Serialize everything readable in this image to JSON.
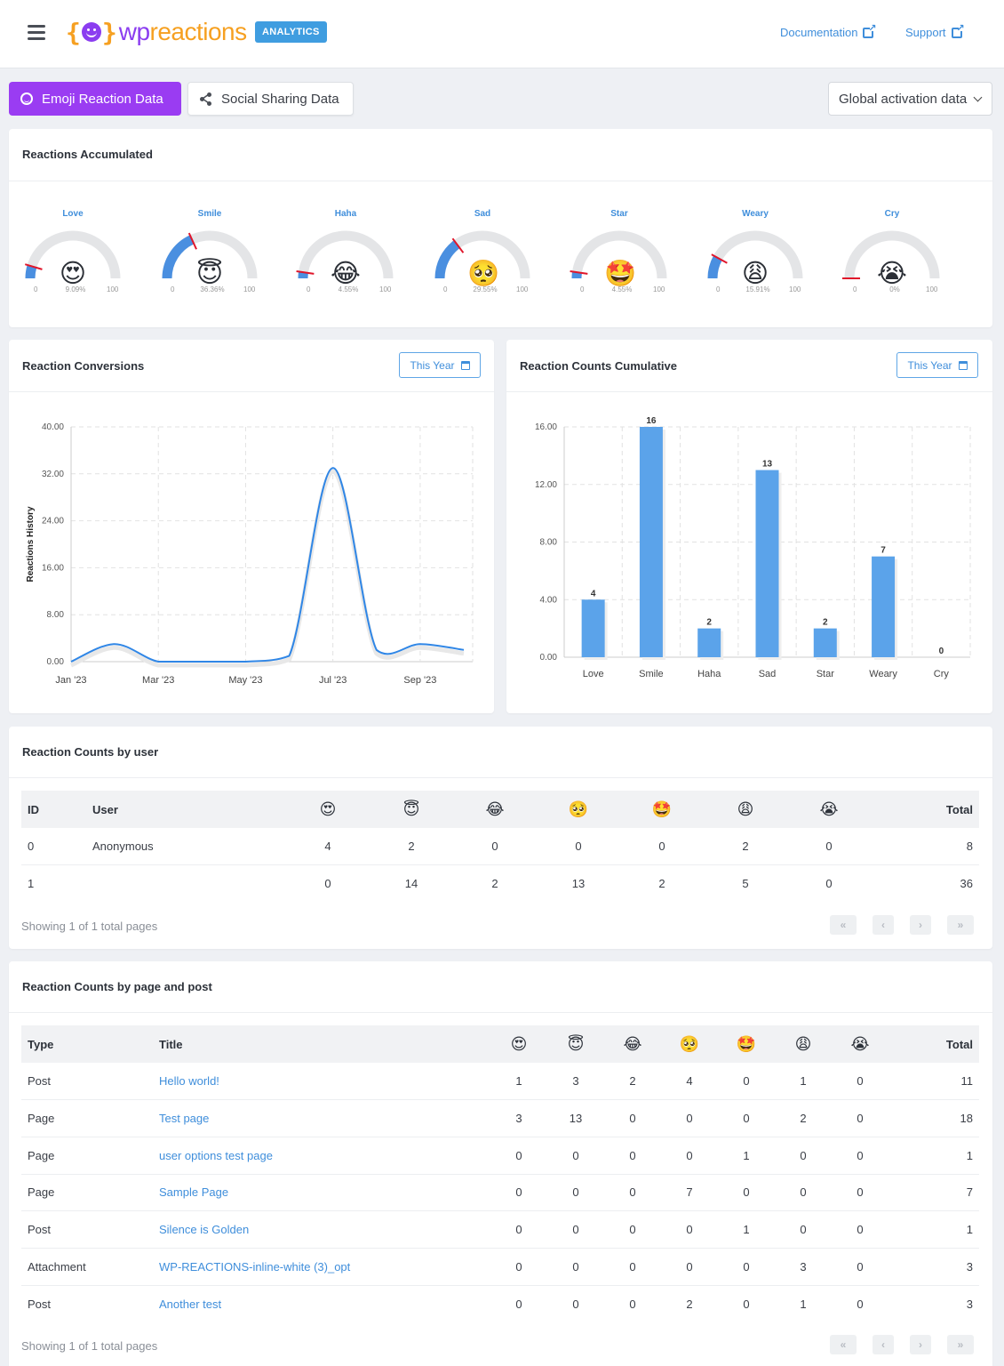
{
  "header": {
    "brand_left": "wp",
    "brand_right": "reactions",
    "badge": "ANALYTICS",
    "links": [
      "Documentation",
      "Support"
    ]
  },
  "tabs": {
    "emoji": "Emoji Reaction Data",
    "social": "Social Sharing Data",
    "select_value": "Global activation data"
  },
  "accumulated": {
    "title": "Reactions Accumulated",
    "min_label": "0",
    "max_label": "100",
    "gauges": [
      {
        "label": "Love",
        "emoji": "😍",
        "pct": "9.09%",
        "value": 9.09
      },
      {
        "label": "Smile",
        "emoji": "😇",
        "pct": "36.36%",
        "value": 36.36
      },
      {
        "label": "Haha",
        "emoji": "😂",
        "pct": "4.55%",
        "value": 4.55
      },
      {
        "label": "Sad",
        "emoji": "🥺",
        "pct": "29.55%",
        "value": 29.55
      },
      {
        "label": "Star",
        "emoji": "🤩",
        "pct": "4.55%",
        "value": 4.55
      },
      {
        "label": "Weary",
        "emoji": "😩",
        "pct": "15.91%",
        "value": 15.91
      },
      {
        "label": "Cry",
        "emoji": "😭",
        "pct": "0%",
        "value": 0
      }
    ]
  },
  "conversions": {
    "title": "Reaction Conversions",
    "range_btn": "This Year"
  },
  "cumulative": {
    "title": "Reaction Counts Cumulative",
    "range_btn": "This Year"
  },
  "chart_data": [
    {
      "type": "line",
      "ylabel": "Reactions History",
      "xlabel": "",
      "ylim": [
        0,
        40
      ],
      "y_ticks": [
        "0.00",
        "8.00",
        "16.00",
        "24.00",
        "32.00",
        "40.00"
      ],
      "x_ticks": [
        "Jan '23",
        "Mar '23",
        "May '23",
        "Jul '23",
        "Sep '23"
      ],
      "grid": true,
      "series": [
        {
          "x": [
            "Jan '23",
            "Feb '23",
            "Mar '23",
            "Apr '23",
            "May '23",
            "Jun '23",
            "Jul '23",
            "Aug '23",
            "Sep '23",
            "Oct '23"
          ],
          "values": [
            0,
            3,
            0,
            0,
            0,
            1,
            33,
            2,
            3,
            2
          ]
        }
      ]
    },
    {
      "type": "bar",
      "ylim": [
        0,
        16
      ],
      "y_ticks": [
        "0.00",
        "4.00",
        "8.00",
        "12.00",
        "16.00"
      ],
      "categories": [
        "Love",
        "Smile",
        "Haha",
        "Sad",
        "Star",
        "Weary",
        "Cry"
      ],
      "values": [
        4,
        16,
        2,
        13,
        2,
        7,
        0
      ],
      "grid": true,
      "color": "#5ba3ea"
    }
  ],
  "by_user": {
    "title": "Reaction Counts by user",
    "headers": [
      "ID",
      "User",
      "😍",
      "😇",
      "😂",
      "🥺",
      "🤩",
      "😩",
      "😭",
      "Total"
    ],
    "rows": [
      [
        "0",
        "Anonymous",
        "4",
        "2",
        "0",
        "0",
        "0",
        "2",
        "0",
        "8"
      ],
      [
        "1",
        "",
        "0",
        "14",
        "2",
        "13",
        "2",
        "5",
        "0",
        "36"
      ]
    ],
    "showing": "Showing 1 of 1 total pages"
  },
  "by_post": {
    "title": "Reaction Counts by page and post",
    "headers": [
      "Type",
      "Title",
      "😍",
      "😇",
      "😂",
      "🥺",
      "🤩",
      "😩",
      "😭",
      "Total"
    ],
    "rows": [
      [
        "Post",
        "Hello world!",
        "1",
        "3",
        "2",
        "4",
        "0",
        "1",
        "0",
        "11"
      ],
      [
        "Page",
        "Test page",
        "3",
        "13",
        "0",
        "0",
        "0",
        "2",
        "0",
        "18"
      ],
      [
        "Page",
        "user options test page",
        "0",
        "0",
        "0",
        "0",
        "1",
        "0",
        "0",
        "1"
      ],
      [
        "Page",
        "Sample Page",
        "0",
        "0",
        "0",
        "7",
        "0",
        "0",
        "0",
        "7"
      ],
      [
        "Post",
        "Silence is Golden",
        "0",
        "0",
        "0",
        "0",
        "1",
        "0",
        "0",
        "1"
      ],
      [
        "Attachment",
        "WP-REACTIONS-inline-white (3)_opt",
        "0",
        "0",
        "0",
        "0",
        "0",
        "3",
        "0",
        "3"
      ],
      [
        "Post",
        "Another test",
        "0",
        "0",
        "0",
        "2",
        "0",
        "1",
        "0",
        "3"
      ]
    ],
    "showing": "Showing 1 of 1 total pages"
  },
  "pager": [
    "«",
    "‹",
    "›",
    "»"
  ]
}
